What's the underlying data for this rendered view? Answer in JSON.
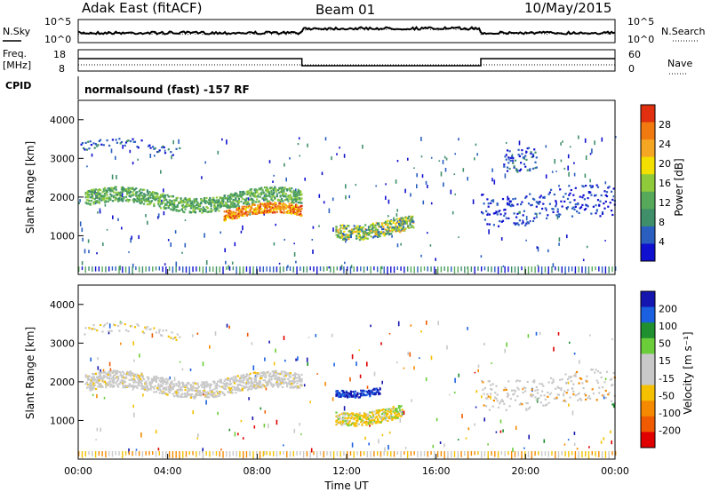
{
  "header": {
    "station": "Adak East (fitACF)",
    "beam": "Beam 01",
    "date": "10/May/2015"
  },
  "panels": {
    "noise": {
      "left_label": "N.Sky",
      "left_ticks": [
        "10^5",
        "10^0"
      ],
      "right_label": "N.Search",
      "right_ticks": [
        "10^5",
        "10^0"
      ]
    },
    "freq": {
      "left_label_1": "Freq.",
      "left_label_2": "[MHz]",
      "left_ticks": [
        "18",
        "8"
      ],
      "right_label": "Nave",
      "right_ticks": [
        "60",
        "0"
      ]
    },
    "cpid": {
      "label": "CPID",
      "text": "normalsound (fast) -157 RF"
    }
  },
  "colors": {
    "power": [
      "#1010d0",
      "#2a5fbf",
      "#3f8f6a",
      "#56a85a",
      "#8fca3a",
      "#f3e000",
      "#f5a623",
      "#f07a10",
      "#e03010"
    ],
    "velocity": [
      "#1515b0",
      "#1a60e0",
      "#1f8f2f",
      "#6ccd3a",
      "#c8c8c8",
      "#c8c8c8",
      "#f5c000",
      "#f58a00",
      "#f05a00",
      "#e00000"
    ]
  },
  "chart_data": [
    {
      "type": "heatmap",
      "name": "Power",
      "xlabel": "",
      "ylabel": "Slant Range [km]",
      "x_ticks": [
        "00:00",
        "04:00",
        "08:00",
        "12:00",
        "16:00",
        "20:00",
        "00:00"
      ],
      "y_ticks": [
        1000,
        2000,
        3000,
        4000
      ],
      "ylim": [
        0,
        4500
      ],
      "colorbar": {
        "label": "Power [dB]",
        "ticks": [
          "4",
          "8",
          "12",
          "16",
          "20",
          "24",
          "28"
        ],
        "range": [
          0,
          30
        ]
      },
      "features": [
        {
          "t_start": 0.0,
          "t_end": 10.0,
          "range_km": 1900,
          "value_db": 14
        },
        {
          "t_start": 6.5,
          "t_end": 10.0,
          "range_km": 1600,
          "value_db": 24
        },
        {
          "t_start": 11.5,
          "t_end": 15.0,
          "range_km": 1250,
          "value_db": 16
        },
        {
          "t_start": 20.0,
          "t_end": 24.0,
          "range_km": 1700,
          "value_db": 6
        }
      ]
    },
    {
      "type": "heatmap",
      "name": "Velocity",
      "xlabel": "Time UT",
      "ylabel": "Slant Range [km]",
      "x_ticks": [
        "00:00",
        "04:00",
        "08:00",
        "12:00",
        "16:00",
        "20:00",
        "00:00"
      ],
      "y_ticks": [
        1000,
        2000,
        3000,
        4000
      ],
      "ylim": [
        0,
        4500
      ],
      "colorbar": {
        "label": "Velocity [m s⁻¹]",
        "ticks": [
          "200",
          "100",
          "50",
          "15",
          "-15",
          "-50",
          "-100",
          "-200"
        ],
        "range": [
          -250,
          250
        ]
      },
      "features": [
        {
          "t_start": 0.0,
          "t_end": 10.0,
          "range_km": 1900,
          "value_ms": 0
        },
        {
          "t_start": 11.5,
          "t_end": 14.5,
          "range_km": 1200,
          "value_ms": -60
        },
        {
          "t_start": 11.5,
          "t_end": 13.5,
          "range_km": 1850,
          "value_ms": 150
        }
      ]
    }
  ]
}
